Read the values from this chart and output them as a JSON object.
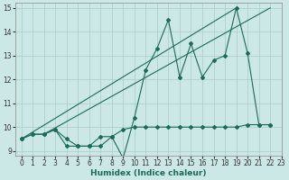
{
  "xlabel": "Humidex (Indice chaleur)",
  "xlim": [
    -0.5,
    23
  ],
  "ylim": [
    8.8,
    15.2
  ],
  "yticks": [
    9,
    10,
    11,
    12,
    13,
    14,
    15
  ],
  "xticks": [
    0,
    1,
    2,
    3,
    4,
    5,
    6,
    7,
    8,
    9,
    10,
    11,
    12,
    13,
    14,
    15,
    16,
    17,
    18,
    19,
    20,
    21,
    22,
    23
  ],
  "bg_color": "#cce8e6",
  "line_color": "#1a6b5a",
  "grid_color": "#aacccc",
  "line1_x": [
    0,
    1,
    2,
    3,
    4,
    5,
    6,
    7,
    8,
    9,
    10,
    11,
    12,
    13,
    14,
    15,
    16,
    17,
    18,
    19,
    20,
    21,
    22
  ],
  "line1_y": [
    9.5,
    9.7,
    9.7,
    9.9,
    9.2,
    9.2,
    9.2,
    9.2,
    9.6,
    8.7,
    10.4,
    12.4,
    13.3,
    14.5,
    12.1,
    13.5,
    12.1,
    12.8,
    13.0,
    15.0,
    13.1,
    10.1,
    10.1
  ],
  "line2_x": [
    0,
    1,
    2,
    3,
    4,
    5,
    6,
    7,
    8,
    9,
    10,
    11,
    12,
    13,
    14,
    15,
    16,
    17,
    18,
    19,
    20,
    21,
    22
  ],
  "line2_y": [
    9.5,
    9.7,
    9.7,
    9.9,
    9.5,
    9.2,
    9.2,
    9.6,
    9.6,
    9.9,
    10.0,
    10.0,
    10.0,
    10.0,
    10.0,
    10.0,
    10.0,
    10.0,
    10.0,
    10.0,
    10.1,
    10.1,
    10.1
  ],
  "line3_x": [
    0,
    19
  ],
  "line3_y": [
    9.5,
    15.0
  ],
  "line4_x": [
    2,
    22
  ],
  "line4_y": [
    9.7,
    15.0
  ]
}
